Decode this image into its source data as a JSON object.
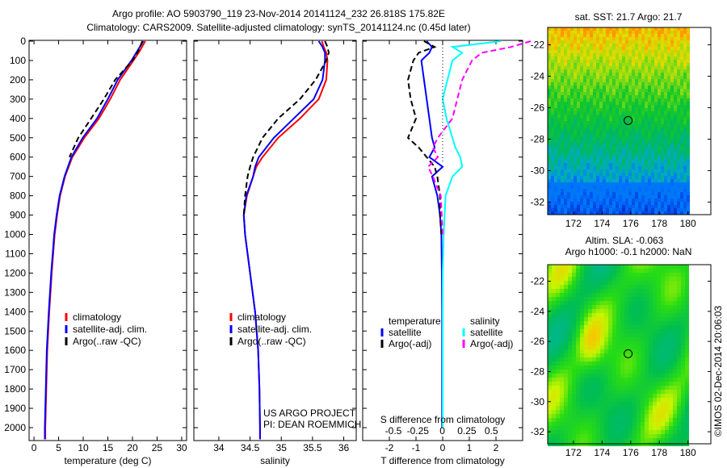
{
  "title_line1": "Argo profile: AO 5903790_119 23-Nov-2014 20141124_232 26.818S 175.82E",
  "title_line2": "Climatology: CARS2009. Satellite-adjusted climatology: synTS_20141124.nc (0.45d later)",
  "credit": "US ARGO PROJECT",
  "pi": "PI: DEAN ROEMMICH",
  "stamp": "©IMOS 02-Dec-2014 20:06:03",
  "colors": {
    "climatology": "#ff0000",
    "satellite": "#0000ff",
    "argo": "#000000",
    "sal_satellite": "#00ffff",
    "sal_argo": "#ff00ff"
  },
  "chart_data": [
    {
      "type": "line",
      "id": "temperature",
      "xlabel": "temperature (deg C)",
      "ylabel": "",
      "xlim": [
        -1,
        31
      ],
      "ylim": [
        2060,
        0
      ],
      "xticks": [
        0,
        5,
        10,
        15,
        20,
        25,
        30
      ],
      "yticks": [
        0,
        100,
        200,
        300,
        400,
        500,
        600,
        700,
        800,
        900,
        1000,
        1100,
        1200,
        1300,
        1400,
        1500,
        1600,
        1700,
        1800,
        1900,
        2000
      ],
      "depth": [
        0,
        50,
        100,
        200,
        300,
        400,
        500,
        600,
        700,
        800,
        900,
        1000,
        1200,
        1400,
        1600,
        1800,
        2000,
        2060
      ],
      "legend": [
        "climatology",
        "satellite-adj. clim.",
        "Argo(..raw -QC)"
      ],
      "series": [
        {
          "name": "climatology",
          "values": [
            22.6,
            21.5,
            20.2,
            17.5,
            15.5,
            13.2,
            10.2,
            7.8,
            6.3,
            5.3,
            4.7,
            4.2,
            3.6,
            3.1,
            2.7,
            2.5,
            2.3,
            2.3
          ]
        },
        {
          "name": "satellite-adj. clim.",
          "values": [
            22.2,
            21.0,
            19.8,
            17.0,
            15.0,
            12.8,
            9.9,
            7.6,
            6.2,
            5.2,
            4.6,
            4.1,
            3.5,
            3.0,
            2.6,
            2.4,
            2.2,
            2.2
          ]
        },
        {
          "name": "Argo(..raw -QC)",
          "values": [
            22.0,
            21.2,
            20.0,
            16.5,
            14.2,
            11.6,
            9.0,
            7.2,
            null,
            null,
            null,
            null,
            null,
            null,
            null,
            null,
            null,
            null
          ]
        }
      ]
    },
    {
      "type": "line",
      "id": "salinity",
      "xlabel": "salinity",
      "xlim": [
        33.6,
        36.2
      ],
      "ylim": [
        2060,
        0
      ],
      "xticks": [
        34,
        34.5,
        35,
        35.5,
        36
      ],
      "depth": [
        0,
        30,
        60,
        100,
        200,
        300,
        400,
        500,
        600,
        650,
        700,
        800,
        900,
        1000,
        1200,
        1400,
        1600,
        1800,
        2000,
        2060
      ],
      "legend": [
        "climatology",
        "satellite-adj. clim.",
        "Argo(..raw -QC)"
      ],
      "series": [
        {
          "name": "climatology",
          "values": [
            35.65,
            35.68,
            35.72,
            35.74,
            35.72,
            35.6,
            35.3,
            34.95,
            34.7,
            34.6,
            34.55,
            34.45,
            34.4,
            34.42,
            34.5,
            34.58,
            34.63,
            34.65,
            34.66,
            34.66
          ]
        },
        {
          "name": "satellite-adj. clim.",
          "values": [
            35.6,
            35.66,
            35.7,
            35.7,
            35.66,
            35.52,
            35.2,
            34.88,
            34.64,
            34.58,
            34.55,
            34.44,
            34.4,
            34.42,
            34.5,
            34.58,
            34.63,
            34.65,
            34.66,
            34.66
          ]
        },
        {
          "name": "Argo(..raw -QC)",
          "values": [
            35.7,
            35.74,
            35.76,
            35.72,
            35.55,
            35.3,
            34.95,
            34.7,
            34.55,
            34.5,
            34.46,
            34.42,
            34.4,
            null,
            null,
            null,
            null,
            null,
            null,
            null
          ]
        }
      ]
    },
    {
      "type": "line",
      "id": "difference",
      "xlabel": "T difference from climatology",
      "x2label": "S difference from climatology",
      "xlim": [
        -3,
        3
      ],
      "ylim": [
        2060,
        0
      ],
      "xticks": [
        -2,
        -1,
        0,
        1,
        2
      ],
      "x2ticks": [
        "-0.5",
        "-0.25",
        "0",
        "0.25",
        "0.5"
      ],
      "depth": [
        0,
        30,
        60,
        100,
        200,
        300,
        400,
        500,
        550,
        600,
        650,
        700,
        800,
        900,
        1000,
        1200,
        1400,
        1600,
        1800,
        2000
      ],
      "legend_t": {
        "title": "temperature",
        "items": [
          "satellite",
          "Argo(-adj)"
        ]
      },
      "legend_s": {
        "title": "salinity",
        "items": [
          "satellite",
          "Argo(-adj)"
        ]
      },
      "series": [
        {
          "name": "T satellite",
          "values": [
            -0.6,
            -0.4,
            -0.5,
            -0.8,
            -0.7,
            -0.6,
            -0.5,
            -0.4,
            -0.3,
            -0.5,
            0,
            -0.4,
            -0.2,
            -0.1,
            -0.05,
            -0.03,
            -0.02,
            -0.02,
            -0.02,
            -0.02
          ]
        },
        {
          "name": "T Argo(-adj)",
          "values": [
            -0.7,
            -0.3,
            -0.9,
            -1.1,
            -1.3,
            -1.2,
            -1.0,
            -1.3,
            -0.9,
            -0.6,
            -0.3,
            -0.2,
            -0.1,
            -0.1,
            -0.05,
            null,
            null,
            null,
            null,
            null
          ]
        },
        {
          "name": "S satellite",
          "values": [
            0.6,
            0.1,
            0.2,
            0.1,
            0.05,
            0.0,
            0.04,
            0.1,
            0.13,
            0.18,
            0.2,
            0.1,
            0.03,
            0.02,
            0.01,
            0,
            0,
            0,
            0,
            0
          ]
        },
        {
          "name": "S Argo(-adj)",
          "values": [
            0.9,
            0.7,
            0.4,
            0.3,
            0.2,
            0.15,
            0.1,
            -0.05,
            -0.1,
            -0.05,
            -0.15,
            -0.1,
            -0.02,
            -0.01,
            0,
            null,
            null,
            null,
            null,
            null
          ]
        }
      ]
    },
    {
      "type": "heatmap",
      "id": "sst-map",
      "title": "sat. SST: 21.7 Argo: 21.7",
      "xlim": [
        170.2,
        181.6
      ],
      "ylim": [
        -32.8,
        -20.9
      ],
      "xticks": [
        172,
        174,
        176,
        178,
        180
      ],
      "yticks": [
        -22,
        -24,
        -26,
        -28,
        -30,
        -32
      ],
      "marker": [
        175.82,
        -26.818
      ]
    },
    {
      "type": "heatmap",
      "id": "sla-map",
      "title": "Altim. SLA: -0.063",
      "subtitle": "Argo h1000: -0.1 h2000: NaN",
      "xlim": [
        170.2,
        181.6
      ],
      "ylim": [
        -32.8,
        -20.9
      ],
      "xticks": [
        172,
        174,
        176,
        178,
        180
      ],
      "yticks": [
        -22,
        -24,
        -26,
        -28,
        -30,
        -32
      ],
      "marker": [
        175.82,
        -26.818
      ]
    }
  ]
}
